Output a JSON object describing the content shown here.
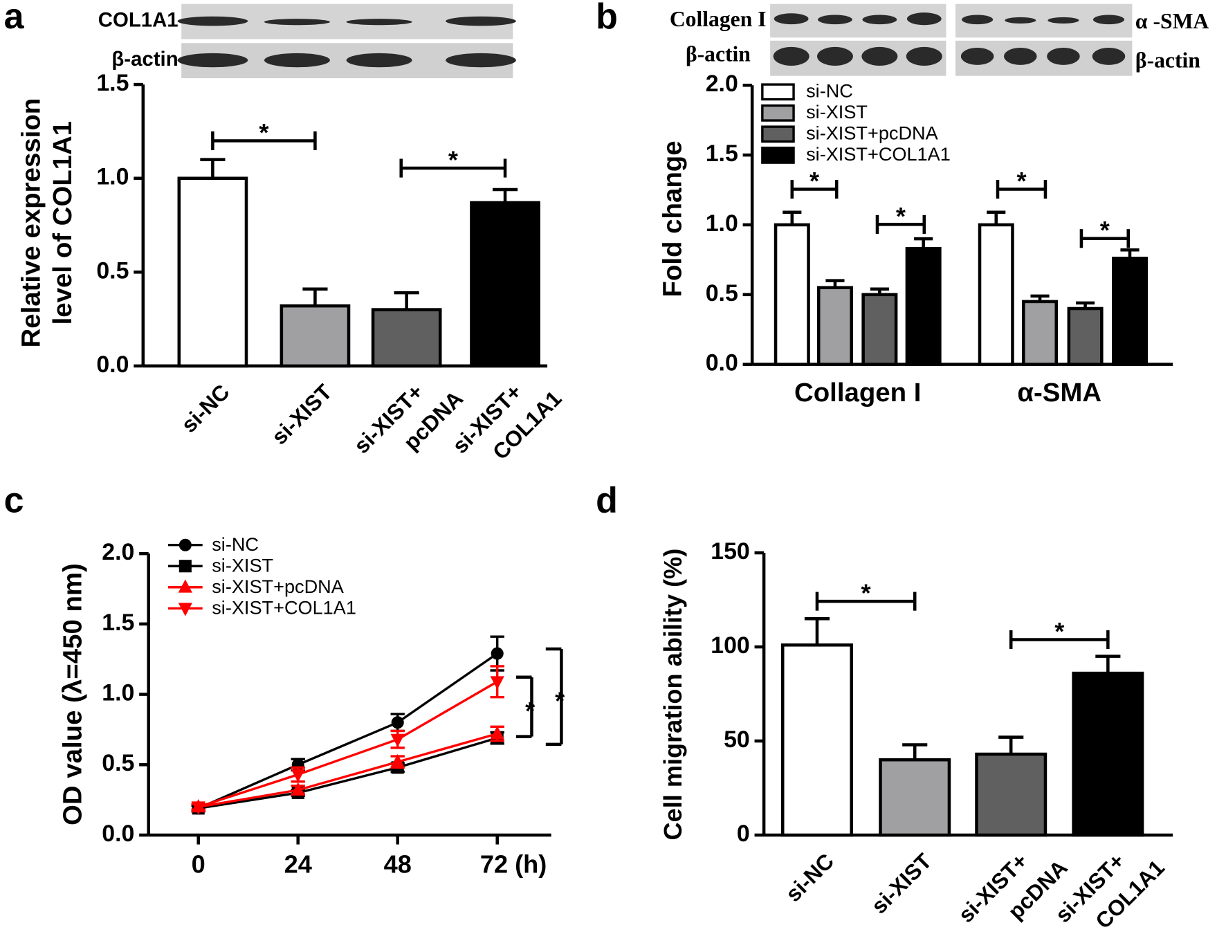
{
  "chart_data": [
    {
      "type": "bar",
      "panel": "a",
      "blot_labels": [
        "COL1A1",
        "β-actin"
      ],
      "ylabel": [
        "Relative expression",
        "level of COL1A1"
      ],
      "categories": [
        "si-NC",
        "si-XIST",
        [
          "si-XIST+",
          "pcDNA"
        ],
        [
          "si-XIST+",
          "COL1A1"
        ]
      ],
      "values": [
        1.0,
        0.32,
        0.3,
        0.87
      ],
      "errors": [
        0.1,
        0.09,
        0.09,
        0.07
      ],
      "colors": [
        "#ffffff",
        "#a0a0a2",
        "#606060",
        "#000000"
      ],
      "ylim": [
        0,
        1.5
      ],
      "yticks": [
        {
          "value": 0,
          "label": "0.0"
        },
        0.5,
        {
          "value": 1,
          "label": "1.0"
        },
        1.5
      ],
      "annotations": [
        "*",
        "*"
      ]
    },
    {
      "type": "grouped_bar",
      "panel": "b",
      "blot_labels": [
        "Collagen I",
        "β-actin",
        "α -SMA",
        "β-actin"
      ],
      "ylabel": "Fold change",
      "categories": [
        "Collagen I",
        "α-SMA"
      ],
      "series": [
        {
          "name": "si-NC",
          "color": "#ffffff",
          "values": [
            1.0,
            1.0
          ],
          "errors": [
            0.09,
            0.09
          ]
        },
        {
          "name": "si-XIST",
          "color": "#a0a0a2",
          "values": [
            0.55,
            0.45
          ],
          "errors": [
            0.05,
            0.04
          ]
        },
        {
          "name": "si-XIST+pcDNA",
          "color": "#606060",
          "values": [
            0.5,
            0.4
          ],
          "errors": [
            0.04,
            0.04
          ]
        },
        {
          "name": "si-XIST+COL1A1",
          "color": "#000000",
          "values": [
            0.83,
            0.76
          ],
          "errors": [
            0.07,
            0.06
          ]
        }
      ],
      "ylim": [
        0,
        2
      ],
      "yticks": [
        {
          "value": 0,
          "label": "0.0"
        },
        0.5,
        {
          "value": 1,
          "label": "1.0"
        },
        1.5,
        {
          "value": 2,
          "label": "2.0"
        }
      ],
      "annotations": [
        "*",
        "*",
        "*",
        "*"
      ]
    },
    {
      "type": "line",
      "panel": "c",
      "ylabel": "OD value (λ=450 nm)",
      "x": [
        0,
        24,
        48,
        72
      ],
      "xlim": [
        -12,
        85
      ],
      "xticks": [
        0,
        24,
        48,
        {
          "value": 72,
          "label": "72 (h)"
        }
      ],
      "series": [
        {
          "name": "si-NC",
          "color": "#000000",
          "marker": "circle",
          "values": [
            0.19,
            0.5,
            0.8,
            1.29
          ],
          "errors": [
            0.02,
            0.04,
            0.06,
            0.12
          ]
        },
        {
          "name": "si-XIST",
          "color": "#000000",
          "marker": "square",
          "values": [
            0.19,
            0.3,
            0.48,
            0.69
          ],
          "errors": [
            0.02,
            0.02,
            0.03,
            0.04
          ]
        },
        {
          "name": "si-XIST+pcDNA",
          "color": "#ff0000",
          "marker": "triangle-up",
          "values": [
            0.2,
            0.32,
            0.52,
            0.72
          ],
          "errors": [
            0.02,
            0.03,
            0.04,
            0.05
          ]
        },
        {
          "name": "si-XIST+COL1A1",
          "color": "#ff0000",
          "marker": "triangle-down",
          "values": [
            0.2,
            0.43,
            0.68,
            1.09
          ],
          "errors": [
            0.02,
            0.05,
            0.06,
            0.11
          ]
        }
      ],
      "ylim": [
        0,
        2
      ],
      "yticks": [
        {
          "value": 0,
          "label": "0.0"
        },
        0.5,
        {
          "value": 1,
          "label": "1.0"
        },
        1.5,
        {
          "value": 2,
          "label": "2.0"
        }
      ],
      "annotations": [
        "*",
        "*"
      ]
    },
    {
      "type": "bar",
      "panel": "d",
      "ylabel": "Cell migration ability (%)",
      "categories": [
        "si-NC",
        "si-XIST",
        [
          "si-XIST+",
          "pcDNA"
        ],
        [
          "si-XIST+",
          "COL1A1"
        ]
      ],
      "values": [
        101,
        40,
        43,
        86
      ],
      "errors": [
        14,
        8,
        9,
        9
      ],
      "colors": [
        "#ffffff",
        "#a0a0a2",
        "#606060",
        "#000000"
      ],
      "ylim": [
        0,
        150
      ],
      "yticks": [
        0,
        50,
        100,
        150
      ],
      "annotations": [
        "*",
        "*"
      ]
    }
  ]
}
